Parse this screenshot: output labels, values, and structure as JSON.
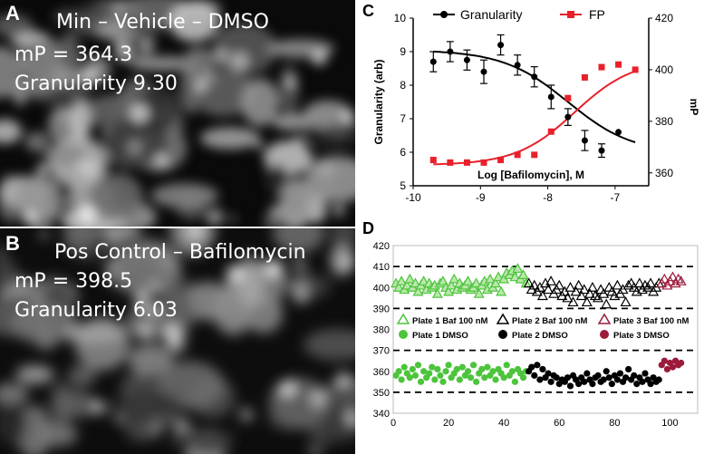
{
  "panel_a": {
    "letter": "A",
    "title": "Min – Vehicle – DMSO",
    "mp": "mP = 364.3",
    "granularity": "Granularity 9.30"
  },
  "panel_b": {
    "letter": "B",
    "title": "Pos Control – Bafilomycin",
    "mp": "mP = 398.5",
    "granularity": "Granularity 6.03"
  },
  "panel_c_letter": "C",
  "panel_d_letter": "D",
  "colors": {
    "granularity": "#000000",
    "fp": "#e8202a",
    "plate1": "#4cc43c",
    "plate2": "#000000",
    "plate3": "#9b1b3b"
  },
  "chart_data": [
    {
      "type": "scatter",
      "panel": "C",
      "title": "",
      "xlabel": "Log [Bafilomycin], M",
      "ylabel": "Granularity (arb)",
      "y2label": "mP",
      "xlim": [
        -10,
        -6.5
      ],
      "ylim": [
        5,
        10
      ],
      "y2lim": [
        355,
        420
      ],
      "xticks": [
        -10,
        -9,
        -8,
        -7
      ],
      "yticks": [
        5,
        6,
        7,
        8,
        9,
        10
      ],
      "y2ticks": [
        360,
        380,
        400,
        420
      ],
      "legend": [
        "Granularity",
        "FP"
      ],
      "series": [
        {
          "name": "Granularity",
          "axis": "left",
          "marker": "circle",
          "x": [
            -9.7,
            -9.45,
            -9.2,
            -8.95,
            -8.7,
            -8.45,
            -8.2,
            -7.95,
            -7.7,
            -7.45,
            -7.2,
            -6.95,
            -6.7
          ],
          "y": [
            8.7,
            9.0,
            8.75,
            8.4,
            9.2,
            8.6,
            8.25,
            7.65,
            7.05,
            6.35,
            6.05,
            6.6,
            null
          ],
          "err": [
            0.3,
            0.3,
            0.3,
            0.35,
            0.3,
            0.3,
            0.3,
            0.35,
            0.25,
            0.3,
            0.2,
            0,
            null
          ],
          "fit": {
            "top": 9.05,
            "bottom": 5.95,
            "log_ec50": -7.7,
            "hill": -0.9
          }
        },
        {
          "name": "FP",
          "axis": "right",
          "marker": "square",
          "x": [
            -9.7,
            -9.45,
            -9.2,
            -8.95,
            -8.7,
            -8.45,
            -8.2,
            -7.95,
            -7.7,
            -7.45,
            -7.2,
            -6.95,
            -6.7
          ],
          "y": [
            365,
            364,
            364,
            364,
            365,
            367,
            367,
            376,
            389,
            397,
            401,
            402,
            400
          ],
          "fit": {
            "top": 404,
            "bottom": 363,
            "log_ec50": -7.6,
            "hill": 1.0
          }
        }
      ]
    },
    {
      "type": "scatter",
      "panel": "D",
      "title": "",
      "xlabel": "",
      "ylabel": "",
      "xlim": [
        0,
        110
      ],
      "ylim": [
        340,
        420
      ],
      "xticks": [
        0,
        20,
        40,
        60,
        80,
        100
      ],
      "yticks": [
        340,
        350,
        360,
        370,
        380,
        390,
        400,
        410,
        420
      ],
      "reference_lines": [
        350,
        370,
        390,
        410
      ],
      "legend": [
        "Plate 1 Baf 100 nM",
        "Plate 2 Baf 100 nM",
        "Plate 3 Baf 100 nM",
        "Plate 1 DMSO",
        "Plate 2 DMSO",
        "Plate 3 DMSO"
      ],
      "series": [
        {
          "name": "Plate 1 Baf 100 nM",
          "marker": "triangle",
          "x": [
            1,
            2,
            3,
            4,
            5,
            6,
            7,
            8,
            9,
            10,
            11,
            12,
            13,
            14,
            15,
            16,
            17,
            18,
            19,
            20,
            21,
            22,
            23,
            24,
            25,
            26,
            27,
            28,
            29,
            30,
            31,
            32,
            33,
            34,
            35,
            36,
            37,
            38,
            39,
            40,
            41,
            42,
            43,
            44,
            45,
            46,
            47,
            48
          ],
          "y": [
            402,
            400,
            403,
            399,
            401,
            404,
            400,
            402,
            398,
            401,
            403,
            399,
            402,
            400,
            401,
            397,
            402,
            403,
            400,
            398,
            401,
            404,
            399,
            402,
            400,
            401,
            403,
            399,
            400,
            402,
            397,
            401,
            403,
            399,
            404,
            400,
            402,
            405,
            398,
            404,
            407,
            406,
            408,
            405,
            409,
            404,
            406,
            402
          ]
        },
        {
          "name": "Plate 2 Baf 100 nM",
          "marker": "triangle",
          "x": [
            49,
            50,
            51,
            52,
            53,
            54,
            55,
            56,
            57,
            58,
            59,
            60,
            61,
            62,
            63,
            64,
            65,
            66,
            67,
            68,
            69,
            70,
            71,
            72,
            73,
            74,
            75,
            76,
            77,
            78,
            79,
            80,
            81,
            82,
            83,
            84,
            85,
            86,
            87,
            88,
            89,
            90,
            91,
            92,
            93,
            94,
            95,
            96
          ],
          "y": [
            402,
            399,
            401,
            398,
            400,
            396,
            402,
            399,
            403,
            397,
            399,
            401,
            396,
            398,
            395,
            400,
            393,
            398,
            401,
            396,
            399,
            393,
            397,
            400,
            396,
            395,
            399,
            397,
            392,
            400,
            398,
            396,
            401,
            397,
            399,
            393,
            401,
            402,
            400,
            398,
            402,
            399,
            401,
            400,
            402,
            398,
            400,
            402
          ]
        },
        {
          "name": "Plate 3 Baf 100 nM",
          "marker": "triangle",
          "x": [
            97,
            98,
            99,
            100,
            101,
            102,
            103,
            104
          ],
          "y": [
            402,
            404,
            401,
            403,
            405,
            402,
            404,
            403
          ]
        },
        {
          "name": "Plate 1 DMSO",
          "marker": "circle",
          "x": [
            1,
            2,
            3,
            4,
            5,
            6,
            7,
            8,
            9,
            10,
            11,
            12,
            13,
            14,
            15,
            16,
            17,
            18,
            19,
            20,
            21,
            22,
            23,
            24,
            25,
            26,
            27,
            28,
            29,
            30,
            31,
            32,
            33,
            34,
            35,
            36,
            37,
            38,
            39,
            40,
            41,
            42,
            43,
            44,
            45,
            46,
            47,
            48
          ],
          "y": [
            358,
            360,
            356,
            362,
            359,
            357,
            361,
            358,
            363,
            355,
            360,
            357,
            359,
            362,
            356,
            361,
            358,
            355,
            360,
            363,
            357,
            359,
            361,
            356,
            362,
            358,
            360,
            357,
            363,
            355,
            359,
            361,
            357,
            362,
            358,
            360,
            356,
            361,
            359,
            357,
            363,
            358,
            360,
            355,
            361,
            359,
            357,
            360
          ]
        },
        {
          "name": "Plate 2 DMSO",
          "marker": "circle",
          "x": [
            49,
            50,
            51,
            52,
            53,
            54,
            55,
            56,
            57,
            58,
            59,
            60,
            61,
            62,
            63,
            64,
            65,
            66,
            67,
            68,
            69,
            70,
            71,
            72,
            73,
            74,
            75,
            76,
            77,
            78,
            79,
            80,
            81,
            82,
            83,
            84,
            85,
            86,
            87,
            88,
            89,
            90,
            91,
            92,
            93,
            94,
            95,
            96
          ],
          "y": [
            360,
            362,
            358,
            363,
            356,
            361,
            357,
            359,
            355,
            358,
            357,
            354,
            356,
            355,
            357,
            353,
            358,
            356,
            354,
            357,
            355,
            359,
            356,
            354,
            357,
            358,
            355,
            356,
            360,
            357,
            354,
            358,
            356,
            359,
            355,
            357,
            361,
            356,
            358,
            354,
            357,
            355,
            359,
            356,
            354,
            357,
            355,
            356
          ]
        },
        {
          "name": "Plate 3 DMSO",
          "marker": "circle",
          "x": [
            97,
            98,
            99,
            100,
            101,
            102,
            103,
            104
          ],
          "y": [
            363,
            365,
            361,
            364,
            362,
            365,
            363,
            364
          ]
        }
      ]
    }
  ]
}
